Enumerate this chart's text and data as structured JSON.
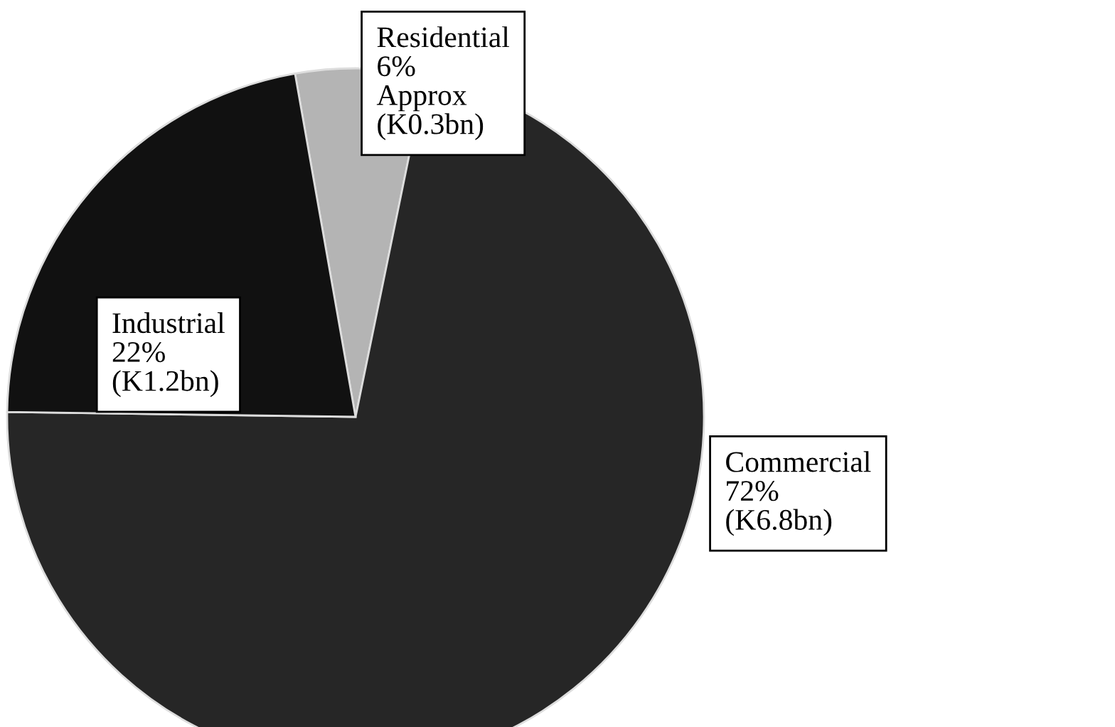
{
  "chart_data": {
    "type": "pie",
    "categories": [
      "Residential",
      "Commercial",
      "Industrial"
    ],
    "values": [
      6,
      72,
      22
    ],
    "colors": [
      "#b4b4b4",
      "#262626",
      "#111111"
    ],
    "value_labels": [
      "6%\nApprox\n(K0.3bn)",
      "72%\n(K6.8bn)",
      "22%\n(K1.2bn)"
    ],
    "legend": false
  }
}
